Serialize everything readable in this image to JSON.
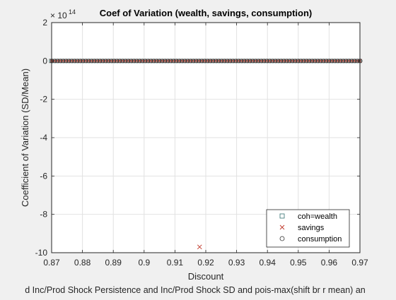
{
  "chart_data": {
    "type": "scatter",
    "title": "Coef of Variation (wealth, savings, consumption)",
    "xlabel": "Discount",
    "ylabel": "Coefficient of Variation (SD/Mean)",
    "caption": "d Inc/Prod Shock Persistence and Inc/Prod Shock SD and pois-max(shift br r mean) an",
    "y_exponent_label": "× 10",
    "y_exponent_power": "14",
    "xlim": [
      0.87,
      0.97
    ],
    "ylim": [
      -10,
      2
    ],
    "x_scale_factor": 1,
    "y_scale_factor": 100000000000000.0,
    "xticks": [
      0.87,
      0.88,
      0.89,
      0.9,
      0.91,
      0.92,
      0.93,
      0.94,
      0.95,
      0.96,
      0.97
    ],
    "xtick_labels": [
      "0.87",
      "0.88",
      "0.89",
      "0.9",
      "0.91",
      "0.92",
      "0.93",
      "0.94",
      "0.95",
      "0.96",
      "0.97"
    ],
    "yticks": [
      2,
      0,
      -2,
      -4,
      -6,
      -8,
      -10
    ],
    "ytick_labels": [
      "2",
      "0",
      "-2",
      "-4",
      "-6",
      "-8",
      "-10"
    ],
    "grid": true,
    "legend_position": "bottom-right",
    "x_range_of_points": [
      0.87,
      0.97
    ],
    "series": [
      {
        "name": "coh=wealth",
        "marker": "square",
        "color": "#2f6f6f",
        "y_value": 0
      },
      {
        "name": "savings",
        "marker": "x",
        "color": "#c0392b",
        "y_value": 0,
        "outlier": {
          "x": 0.918,
          "y": -9.7
        }
      },
      {
        "name": "consumption",
        "marker": "circle",
        "color": "#333333",
        "y_value": 0
      }
    ]
  }
}
